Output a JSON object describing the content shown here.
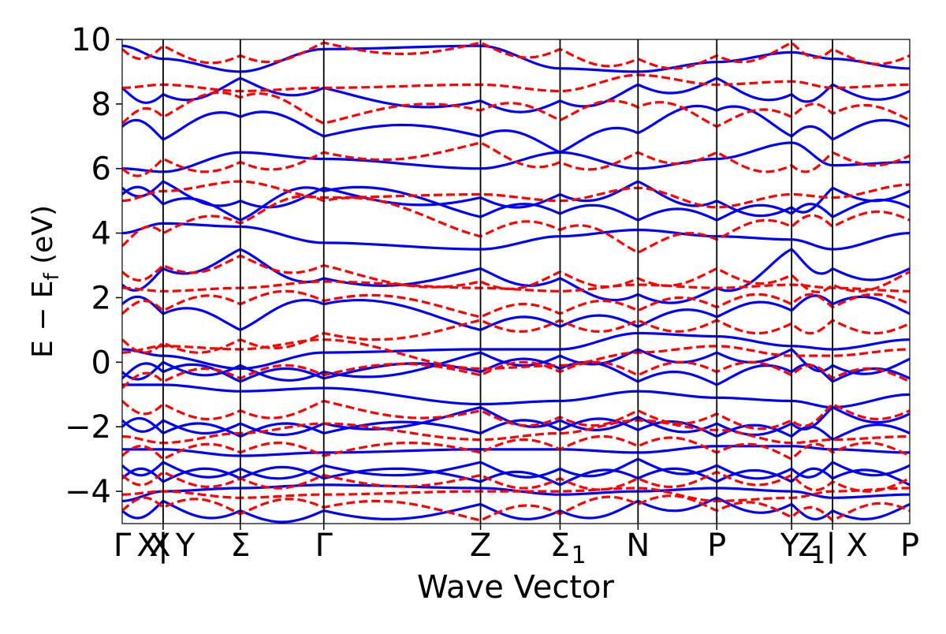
{
  "chart_data": {
    "type": "line",
    "title": "",
    "xlabel": "Wave Vector",
    "ylabel_main": "E − E",
    "ylabel_sub": "f",
    "ylabel_unit": " (eV)",
    "ylim": [
      -5,
      10
    ],
    "yticks": [
      {
        "value": -4,
        "label": "−4"
      },
      {
        "value": -2,
        "label": "−2"
      },
      {
        "value": 0,
        "label": "0"
      },
      {
        "value": 2,
        "label": "2"
      },
      {
        "value": 4,
        "label": "4"
      },
      {
        "value": 6,
        "label": "6"
      },
      {
        "value": 8,
        "label": "8"
      },
      {
        "value": 10,
        "label": "10"
      }
    ],
    "kpath": [
      {
        "pos": 0.0,
        "label": "Γ"
      },
      {
        "pos": 0.32,
        "label": "X"
      },
      {
        "pos": 0.48,
        "label": "X"
      },
      {
        "pos": 0.52,
        "label": "|"
      },
      {
        "pos": 0.8,
        "label": "Y"
      },
      {
        "pos": 1.5,
        "label": "Σ"
      },
      {
        "pos": 2.56,
        "label": "Γ"
      },
      {
        "pos": 4.55,
        "label": "Z"
      },
      {
        "pos": 5.56,
        "label": "Σ"
      },
      {
        "pos": 6.55,
        "label": "N"
      },
      {
        "pos": 7.55,
        "label": "P"
      },
      {
        "pos": 8.48,
        "label": "Y"
      },
      {
        "pos": 8.72,
        "label": "Z"
      },
      {
        "pos": 9.0,
        "label": "|"
      },
      {
        "pos": 9.33,
        "label": "X"
      },
      {
        "pos": 10.0,
        "label": "P"
      }
    ],
    "subscripts": [
      {
        "pos": 5.56,
        "label": "1"
      },
      {
        "pos": 8.6,
        "label": "1"
      }
    ],
    "segment_boundaries": [
      0.52,
      1.5,
      2.56,
      4.55,
      5.56,
      6.55,
      7.55,
      8.5,
      9.02
    ],
    "x_range": [
      0,
      10
    ],
    "series": [
      {
        "style": "solid",
        "color": "#0000ff",
        "energies_at_kpoints": [
          [
            -4.6,
            -4.3,
            -4.6,
            -4.6,
            -4.4,
            -4.6,
            -4.3,
            -4.2,
            -4.4,
            -4.6,
            -4.4
          ],
          [
            -4.3,
            -4.0,
            -3.9,
            -3.8,
            -3.9,
            -4.1,
            -4.0,
            -3.9,
            -4.0,
            -4.2,
            -4.1
          ],
          [
            -3.6,
            -3.7,
            -3.6,
            -3.6,
            -3.7,
            -3.8,
            -3.6,
            -3.7,
            -3.7,
            -3.6,
            -3.8
          ],
          [
            -3.2,
            -3.1,
            -3.3,
            -3.2,
            -3.1,
            -3.3,
            -3.0,
            -3.2,
            -3.3,
            -3.1,
            -3.2
          ],
          [
            -2.7,
            -2.7,
            -2.9,
            -2.8,
            -2.7,
            -2.7,
            -2.8,
            -2.6,
            -2.6,
            -2.7,
            -2.8
          ],
          [
            -2.0,
            -2.2,
            -2.3,
            -2.2,
            -2.2,
            -2.1,
            -2.1,
            -2.3,
            -2.3,
            -2.4,
            -2.2
          ],
          [
            -1.8,
            -1.8,
            -1.9,
            -1.9,
            -1.4,
            -1.8,
            -1.7,
            -1.9,
            -1.9,
            -1.4,
            -1.6
          ],
          [
            -0.7,
            -0.7,
            -0.9,
            -0.8,
            -1.3,
            -1.2,
            -0.9,
            -1.1,
            -1.2,
            -1.4,
            -1.0
          ],
          [
            -0.5,
            -0.3,
            -0.6,
            -0.5,
            -0.3,
            -0.2,
            -0.6,
            -0.7,
            -0.3,
            -0.6,
            -0.5
          ],
          [
            -0.3,
            0.0,
            -0.1,
            -0.3,
            0.3,
            0.2,
            0.4,
            0.3,
            0.4,
            -0.1,
            0.1
          ],
          [
            0.4,
            0.2,
            -0.2,
            0.3,
            0.4,
            0.4,
            0.9,
            0.8,
            0.5,
            0.4,
            0.7
          ],
          [
            1.8,
            1.5,
            1.0,
            1.8,
            1.0,
            1.1,
            1.1,
            1.4,
            1.6,
            1.8,
            1.5
          ],
          [
            2.4,
            2.9,
            3.5,
            2.6,
            2.9,
            2.6,
            2.1,
            2.3,
            3.5,
            2.9,
            2.9
          ],
          [
            4.0,
            4.3,
            4.2,
            3.7,
            3.5,
            3.9,
            4.1,
            3.9,
            3.8,
            3.5,
            4.0
          ],
          [
            5.2,
            4.9,
            4.4,
            5.3,
            4.5,
            4.6,
            4.4,
            4.4,
            4.6,
            4.5,
            4.8
          ],
          [
            5.4,
            5.6,
            5.0,
            5.4,
            5.1,
            5.2,
            5.6,
            5.0,
            4.8,
            5.4,
            5.3
          ],
          [
            6.0,
            5.9,
            6.5,
            6.3,
            6.0,
            6.5,
            6.0,
            6.3,
            6.8,
            6.1,
            6.2
          ],
          [
            7.3,
            6.9,
            7.6,
            7.0,
            7.0,
            6.5,
            7.1,
            7.8,
            7.0,
            6.9,
            7.3
          ],
          [
            8.5,
            8.3,
            8.8,
            8.5,
            8.1,
            8.1,
            8.6,
            8.8,
            8.3,
            8.6,
            8.4
          ],
          [
            9.8,
            9.4,
            9.0,
            9.7,
            9.8,
            9.1,
            9.0,
            9.3,
            9.6,
            9.4,
            9.1
          ]
        ]
      },
      {
        "style": "dashed",
        "color": "#ff0000",
        "energies_at_kpoints": [
          [
            -4.6,
            -4.5,
            -4.7,
            -4.5,
            -4.9,
            -4.7,
            -4.4,
            -4.6,
            -4.8,
            -4.9,
            -4.6
          ],
          [
            -4.1,
            -4.0,
            -4.2,
            -4.1,
            -4.0,
            -4.0,
            -3.9,
            -4.3,
            -4.2,
            -4.0,
            -3.9
          ],
          [
            -3.5,
            -3.4,
            -3.6,
            -3.5,
            -3.5,
            -3.6,
            -3.6,
            -3.4,
            -3.5,
            -3.7,
            -3.6
          ],
          [
            -2.9,
            -3.0,
            -2.8,
            -2.9,
            -2.8,
            -2.7,
            -2.6,
            -2.8,
            -3.0,
            -2.8,
            -2.9
          ],
          [
            -2.3,
            -2.5,
            -2.2,
            -1.9,
            -2.4,
            -2.2,
            -1.8,
            -2.1,
            -2.5,
            -2.4,
            -2.3
          ],
          [
            -1.2,
            -1.3,
            -1.5,
            -1.2,
            -1.5,
            -1.7,
            -1.5,
            -1.6,
            -1.8,
            -1.3,
            -1.5
          ],
          [
            -0.8,
            -0.6,
            -0.5,
            -0.4,
            -0.4,
            -0.3,
            -0.4,
            -0.3,
            -0.4,
            -0.5,
            -0.6
          ],
          [
            0.3,
            0.5,
            0.4,
            0.7,
            -0.2,
            -0.1,
            0.3,
            0.5,
            0.2,
            0.2,
            0.4
          ],
          [
            0.7,
            0.6,
            0.7,
            0.9,
            1.3,
            1.3,
            1.3,
            1.3,
            1.2,
            1.3,
            1.2
          ],
          [
            1.5,
            1.6,
            1.8,
            1.9,
            1.4,
            1.5,
            1.6,
            1.7,
            1.8,
            1.7,
            1.8
          ],
          [
            2.3,
            2.2,
            2.3,
            2.5,
            2.3,
            2.2,
            2.4,
            2.3,
            2.4,
            2.3,
            2.2
          ],
          [
            2.8,
            3.0,
            3.3,
            3.0,
            2.5,
            2.8,
            2.6,
            2.9,
            2.7,
            2.4,
            2.8
          ],
          [
            3.6,
            4.0,
            4.3,
            5.0,
            3.9,
            4.1,
            3.4,
            3.8,
            4.2,
            4.2,
            4.4
          ],
          [
            5.0,
            5.3,
            5.6,
            5.1,
            5.2,
            5.0,
            5.4,
            4.8,
            5.2,
            5.1,
            5.5
          ],
          [
            6.0,
            6.3,
            6.2,
            6.5,
            6.8,
            6.2,
            6.5,
            6.5,
            6.1,
            6.5,
            6.4
          ],
          [
            7.4,
            7.6,
            8.2,
            7.4,
            7.8,
            7.5,
            7.9,
            7.3,
            7.6,
            7.7,
            7.5
          ],
          [
            8.5,
            8.6,
            8.4,
            8.5,
            8.6,
            8.4,
            8.9,
            8.6,
            8.7,
            8.5,
            8.6
          ],
          [
            9.7,
            9.8,
            9.5,
            9.9,
            9.9,
            9.7,
            9.4,
            9.5,
            9.9,
            9.7,
            9.5
          ]
        ]
      }
    ],
    "grid": false,
    "legend": "none"
  }
}
